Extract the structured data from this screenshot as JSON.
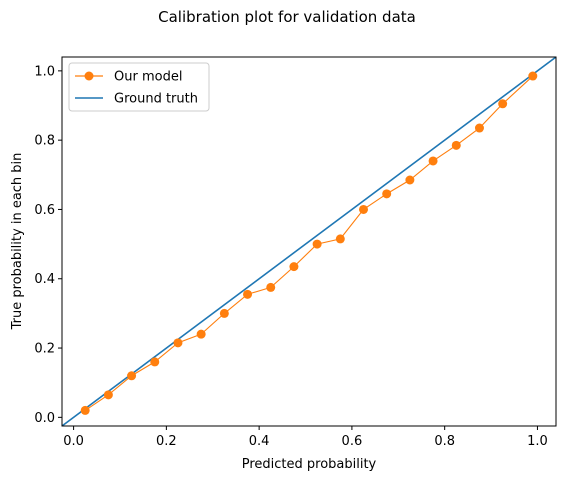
{
  "chart_data": {
    "type": "line",
    "title": "Calibration plot for validation data",
    "xlabel": "Predicted probability",
    "ylabel": "True probability in each bin",
    "xlim": [
      -0.025,
      1.04
    ],
    "ylim": [
      -0.025,
      1.04
    ],
    "xticks": [
      0.0,
      0.2,
      0.4,
      0.6,
      0.8,
      1.0
    ],
    "yticks": [
      0.0,
      0.2,
      0.4,
      0.6,
      0.8,
      1.0
    ],
    "xtick_labels": [
      "0.0",
      "0.2",
      "0.4",
      "0.6",
      "0.8",
      "1.0"
    ],
    "ytick_labels": [
      "0.0",
      "0.2",
      "0.4",
      "0.6",
      "0.8",
      "1.0"
    ],
    "grid": false,
    "legend_position": "top-left",
    "series": [
      {
        "name": "Our model",
        "color": "#ff7f0e",
        "marker": "circle",
        "x": [
          0.025,
          0.075,
          0.125,
          0.175,
          0.225,
          0.275,
          0.325,
          0.375,
          0.425,
          0.475,
          0.525,
          0.575,
          0.625,
          0.675,
          0.725,
          0.775,
          0.825,
          0.875,
          0.925,
          0.99
        ],
        "y": [
          0.02,
          0.065,
          0.12,
          0.16,
          0.215,
          0.24,
          0.3,
          0.355,
          0.375,
          0.435,
          0.5,
          0.515,
          0.6,
          0.645,
          0.685,
          0.74,
          0.785,
          0.835,
          0.905,
          0.985
        ]
      },
      {
        "name": "Ground truth",
        "color": "#1f77b4",
        "marker": "none",
        "x": [
          -0.025,
          1.04
        ],
        "y": [
          -0.025,
          1.04
        ]
      }
    ]
  }
}
